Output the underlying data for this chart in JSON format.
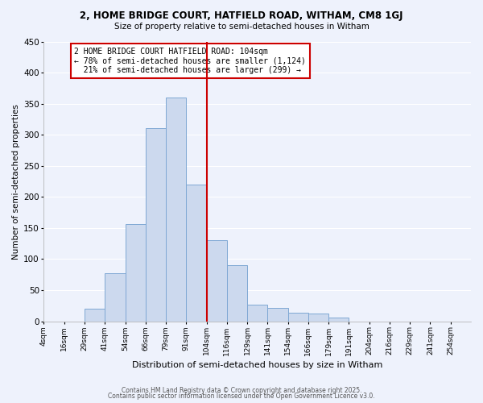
{
  "title": "2, HOME BRIDGE COURT, HATFIELD ROAD, WITHAM, CM8 1GJ",
  "subtitle": "Size of property relative to semi-detached houses in Witham",
  "xlabel": "Distribution of semi-detached houses by size in Witham",
  "ylabel": "Number of semi-detached properties",
  "bin_labels": [
    "4sqm",
    "16sqm",
    "29sqm",
    "41sqm",
    "54sqm",
    "66sqm",
    "79sqm",
    "91sqm",
    "104sqm",
    "116sqm",
    "129sqm",
    "141sqm",
    "154sqm",
    "166sqm",
    "179sqm",
    "191sqm",
    "204sqm",
    "216sqm",
    "229sqm",
    "241sqm",
    "254sqm"
  ],
  "bar_heights": [
    0,
    0,
    20,
    77,
    157,
    311,
    360,
    220,
    130,
    90,
    27,
    22,
    14,
    13,
    6,
    0,
    0,
    0,
    0,
    0
  ],
  "bar_color": "#ccd9ee",
  "bar_edge_color": "#7fa8d4",
  "property_line_index": 8,
  "property_line_color": "#cc0000",
  "annotation_text": "2 HOME BRIDGE COURT HATFIELD ROAD: 104sqm\n← 78% of semi-detached houses are smaller (1,124)\n  21% of semi-detached houses are larger (299) →",
  "annotation_box_color": "#ffffff",
  "annotation_box_edge": "#cc0000",
  "ylim": [
    0,
    450
  ],
  "yticks": [
    0,
    50,
    100,
    150,
    200,
    250,
    300,
    350,
    400,
    450
  ],
  "background_color": "#eef2fc",
  "grid_color": "#ffffff",
  "footer1": "Contains HM Land Registry data © Crown copyright and database right 2025.",
  "footer2": "Contains public sector information licensed under the Open Government Licence v3.0."
}
